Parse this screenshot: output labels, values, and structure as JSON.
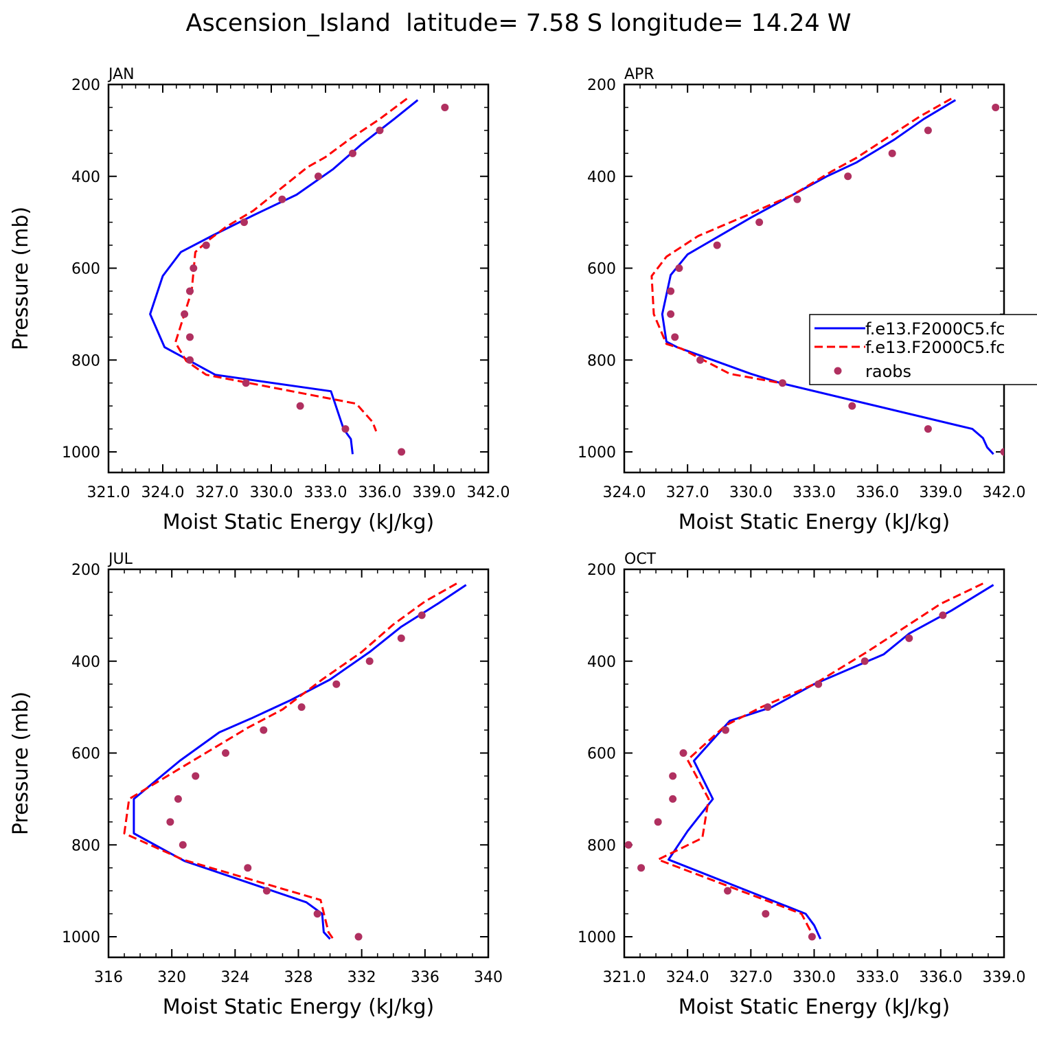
{
  "title": "Ascension_Island  latitude= 7.58 S longitude= 14.24 W",
  "colors": {
    "model1": "#0000ff",
    "model2": "#ff0000",
    "obs": "#b03060"
  },
  "legend": {
    "position": "right of APR panel",
    "entries": [
      "f.e13.F2000C5.fc",
      "f.e13.F2000C5.fc",
      "raobs"
    ]
  },
  "chart_data": [
    {
      "type": "line",
      "panel_label": "JAN",
      "xlabel": "Moist Static Energy (kJ/kg)",
      "ylabel": "Pressure (mb)",
      "xlim": [
        321,
        342
      ],
      "ylim": [
        1050,
        200
      ],
      "x_ticks": [
        321,
        324,
        327,
        330,
        333,
        336,
        339,
        342
      ],
      "x_tick_labels": [
        "321.0",
        "324.0",
        "327.0",
        "330.0",
        "333.0",
        "336.0",
        "339.0",
        "342.0"
      ],
      "y_ticks": [
        200,
        400,
        600,
        800,
        1000
      ],
      "y_tick_labels": [
        "200",
        "400",
        "600",
        "800",
        "1000"
      ],
      "series": [
        {
          "name": "f.e13.F2000C5.fc",
          "style": "solid",
          "color": "#0000ff",
          "x": [
            338.1,
            336.8,
            335.0,
            333.4,
            331.4,
            329.0,
            326.8,
            325.0,
            324.0,
            323.3,
            324.1,
            326.9,
            333.3,
            334.0,
            334.4,
            334.5
          ],
          "y": [
            234,
            275,
            330,
            385,
            440,
            485,
            528,
            565,
            617,
            700,
            772,
            832,
            868,
            950,
            972,
            1005
          ]
        },
        {
          "name": "f.e13.F2000C5.fc",
          "style": "dashed",
          "color": "#ff0000",
          "x": [
            337.5,
            336.0,
            334.3,
            333.0,
            332.0,
            329.0,
            327.5,
            326.5,
            325.8,
            325.6,
            324.7,
            325.3,
            326.4,
            334.7,
            335.6,
            335.8
          ],
          "y": [
            231,
            275,
            320,
            358,
            380,
            475,
            510,
            540,
            565,
            650,
            762,
            802,
            832,
            895,
            935,
            955
          ]
        },
        {
          "name": "raobs",
          "style": "points",
          "color": "#b03060",
          "x": [
            339.6,
            336.0,
            334.5,
            332.6,
            330.6,
            328.5,
            326.4,
            325.7,
            325.5,
            325.2,
            325.5,
            325.5,
            328.6,
            331.6,
            334.1,
            337.2
          ],
          "y": [
            250,
            300,
            350,
            400,
            450,
            500,
            550,
            600,
            650,
            700,
            750,
            800,
            850,
            900,
            950,
            1000
          ]
        }
      ]
    },
    {
      "type": "line",
      "panel_label": "APR",
      "xlabel": "Moist Static Energy (kJ/kg)",
      "ylabel": "",
      "xlim": [
        324,
        342
      ],
      "ylim": [
        1050,
        200
      ],
      "x_ticks": [
        324,
        327,
        330,
        333,
        336,
        339,
        342
      ],
      "x_tick_labels": [
        "324.0",
        "327.0",
        "330.0",
        "333.0",
        "336.0",
        "339.0",
        "342.0"
      ],
      "y_ticks": [
        200,
        400,
        600,
        800,
        1000
      ],
      "y_tick_labels": [
        "200",
        "400",
        "600",
        "800",
        "1000"
      ],
      "series": [
        {
          "name": "f.e13.F2000C5.fc",
          "style": "solid",
          "color": "#0000ff",
          "x": [
            339.7,
            338.2,
            336.8,
            335.0,
            333.6,
            332.0,
            330.0,
            328.5,
            327.0,
            326.2,
            325.8,
            326.0,
            326.5,
            330.0,
            331.4,
            340.5,
            341.0,
            341.2,
            341.5
          ],
          "y": [
            234,
            275,
            320,
            370,
            400,
            440,
            490,
            530,
            570,
            615,
            700,
            760,
            772,
            830,
            850,
            950,
            970,
            990,
            1005
          ]
        },
        {
          "name": "f.e13.F2000C5.fc",
          "style": "dashed",
          "color": "#ff0000",
          "x": [
            339.5,
            338.0,
            336.5,
            335.0,
            333.8,
            332.0,
            329.8,
            327.5,
            326.0,
            325.3,
            325.4,
            326.0,
            326.7,
            329.0,
            331.4
          ],
          "y": [
            231,
            270,
            315,
            360,
            390,
            440,
            485,
            530,
            575,
            617,
            700,
            765,
            775,
            830,
            850
          ]
        },
        {
          "name": "raobs",
          "style": "points",
          "color": "#b03060",
          "x": [
            341.6,
            338.4,
            336.7,
            334.6,
            332.2,
            330.4,
            328.4,
            326.6,
            326.2,
            326.2,
            326.4,
            327.6,
            331.5,
            334.8,
            338.4,
            342.0
          ],
          "y": [
            250,
            300,
            350,
            400,
            450,
            500,
            550,
            600,
            650,
            700,
            750,
            800,
            850,
            900,
            950,
            1000
          ]
        }
      ]
    },
    {
      "type": "line",
      "panel_label": "JUL",
      "xlabel": "Moist Static Energy (kJ/kg)",
      "ylabel": "Pressure (mb)",
      "xlim": [
        316,
        340
      ],
      "ylim": [
        1050,
        200
      ],
      "x_ticks": [
        316,
        320,
        324,
        328,
        332,
        336,
        340
      ],
      "x_tick_labels": [
        "316",
        "320",
        "324",
        "328",
        "332",
        "336",
        "340"
      ],
      "y_ticks": [
        200,
        400,
        600,
        800,
        1000
      ],
      "y_tick_labels": [
        "200",
        "400",
        "600",
        "800",
        "1000"
      ],
      "series": [
        {
          "name": "f.e13.F2000C5.fc",
          "style": "solid",
          "color": "#0000ff",
          "x": [
            338.6,
            336.8,
            334.5,
            332.5,
            330.0,
            327.5,
            325.0,
            323.0,
            320.5,
            317.6,
            317.6,
            320.8,
            328.5,
            329.5,
            329.6,
            330.0
          ],
          "y": [
            234,
            275,
            325,
            380,
            440,
            485,
            525,
            555,
            617,
            700,
            775,
            835,
            925,
            950,
            990,
            1005
          ]
        },
        {
          "name": "f.e13.F2000C5.fc",
          "style": "dashed",
          "color": "#ff0000",
          "x": [
            338.0,
            336.0,
            334.0,
            332.0,
            329.5,
            327.0,
            324.8,
            317.3,
            317.0,
            320.7,
            329.4,
            329.9,
            330.2
          ],
          "y": [
            231,
            270,
            320,
            380,
            440,
            505,
            545,
            700,
            775,
            832,
            920,
            990,
            1005
          ]
        },
        {
          "name": "raobs",
          "style": "points",
          "color": "#b03060",
          "x": [
            335.8,
            334.5,
            332.5,
            330.4,
            328.2,
            325.8,
            323.4,
            321.5,
            320.4,
            319.9,
            320.7,
            324.8,
            326.0,
            329.2,
            331.8
          ],
          "y": [
            300,
            350,
            400,
            450,
            500,
            550,
            600,
            650,
            700,
            750,
            800,
            850,
            900,
            950,
            1000
          ]
        }
      ]
    },
    {
      "type": "line",
      "panel_label": "OCT",
      "xlabel": "Moist Static Energy (kJ/kg)",
      "ylabel": "",
      "xlim": [
        321,
        339
      ],
      "ylim": [
        1050,
        200
      ],
      "x_ticks": [
        321,
        324,
        327,
        330,
        333,
        336,
        339
      ],
      "x_tick_labels": [
        "321.0",
        "324.0",
        "327.0",
        "330.0",
        "333.0",
        "336.0",
        "339.0"
      ],
      "y_ticks": [
        200,
        400,
        600,
        800,
        1000
      ],
      "y_tick_labels": [
        "200",
        "400",
        "600",
        "800",
        "1000"
      ],
      "series": [
        {
          "name": "f.e13.F2000C5.fc",
          "style": "solid",
          "color": "#0000ff",
          "x": [
            338.5,
            336.5,
            334.5,
            333.3,
            330.0,
            328.0,
            326.0,
            324.3,
            325.2,
            324.0,
            323.1,
            329.6,
            330.0,
            330.3
          ],
          "y": [
            234,
            290,
            340,
            385,
            450,
            500,
            530,
            617,
            700,
            770,
            832,
            950,
            975,
            1005
          ]
        },
        {
          "name": "f.e13.F2000C5.fc",
          "style": "dashed",
          "color": "#ff0000",
          "x": [
            338.0,
            336.0,
            334.5,
            332.5,
            330.0,
            327.5,
            325.8,
            324.0,
            325.0,
            324.7,
            322.6,
            329.4,
            329.8,
            330.0
          ],
          "y": [
            231,
            275,
            320,
            380,
            450,
            500,
            540,
            615,
            700,
            785,
            832,
            950,
            985,
            1005
          ]
        },
        {
          "name": "raobs",
          "style": "points",
          "color": "#b03060",
          "x": [
            336.1,
            334.5,
            332.4,
            330.2,
            327.8,
            325.8,
            323.8,
            323.3,
            323.3,
            322.6,
            321.2,
            321.8,
            325.9,
            327.7,
            329.9
          ],
          "y": [
            300,
            350,
            400,
            450,
            500,
            550,
            600,
            650,
            700,
            750,
            800,
            850,
            900,
            950,
            1000
          ]
        }
      ]
    }
  ]
}
